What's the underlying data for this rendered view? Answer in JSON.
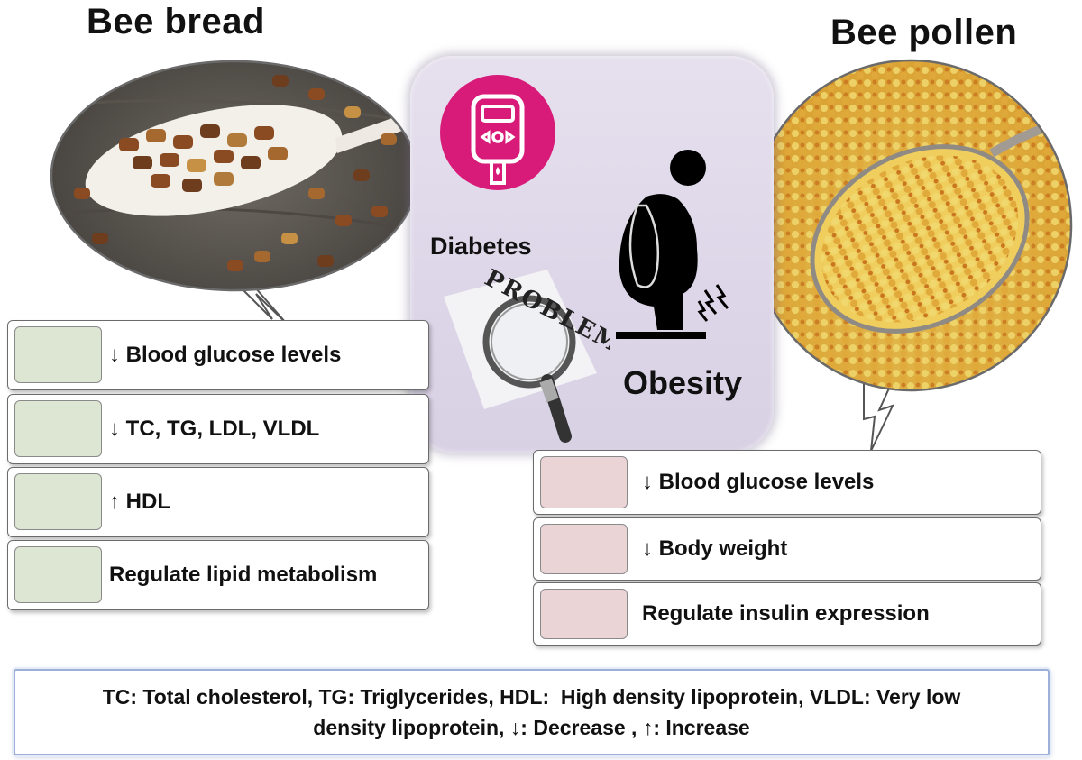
{
  "bee_bread": {
    "title": "Bee bread",
    "effects": [
      "↓ Blood glucose levels",
      "↓ TC, TG, LDL, VLDL",
      "↑ HDL",
      "Regulate lipid metabolism"
    ]
  },
  "bee_pollen": {
    "title": "Bee pollen",
    "effects": [
      "↓ Blood glucose levels",
      "↓ Body weight",
      "Regulate insulin expression"
    ]
  },
  "center": {
    "diabetes_label": "Diabetes",
    "obesity_label": "Obesity",
    "magnifier_word": "PROBLEM"
  },
  "legend": {
    "line1": "TC: Total cholesterol, TG: Triglycerides, HDL:  High density lipoprotein, VLDL: Very low",
    "line2": "density lipoprotein, ↓: Decrease , ↑: Increase"
  },
  "colors": {
    "bee_bread_swatch": "#dde6d3",
    "bee_pollen_swatch": "#ead4d6",
    "diabetes_icon": "#d81b78",
    "panel_bg": "#e0daea",
    "legend_border": "#9db0d8"
  }
}
